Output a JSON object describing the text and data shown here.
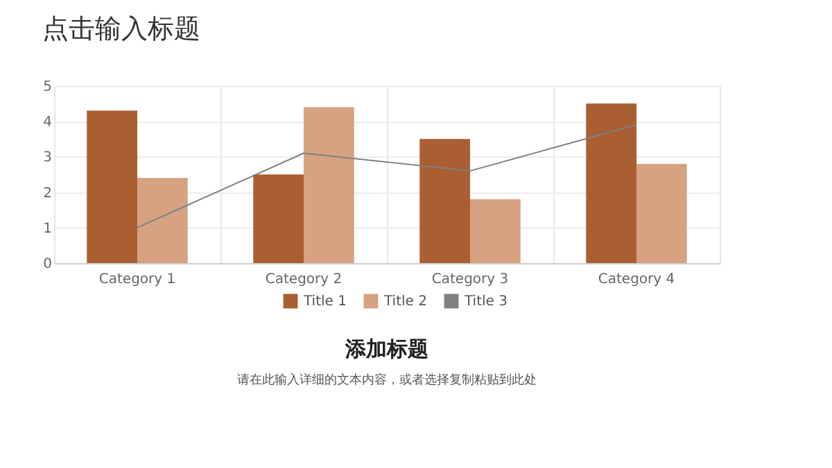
{
  "chart_data": {
    "type": "bar",
    "title": "点击输入标题",
    "categories": [
      "Category 1",
      "Category 2",
      "Category 3",
      "Category 4"
    ],
    "series": [
      {
        "name": "Title 1",
        "color": "#a95f32",
        "values": [
          4.3,
          2.5,
          3.5,
          4.5
        ]
      },
      {
        "name": "Title 2",
        "color": "#d6a282",
        "values": [
          2.4,
          4.4,
          1.8,
          2.8
        ]
      },
      {
        "name": "Title 3",
        "color": "#808080",
        "type": "line",
        "values": [
          1.0,
          3.1,
          2.6,
          3.9
        ]
      }
    ],
    "ylim": [
      0,
      5
    ],
    "yticks": [
      0,
      1,
      2,
      3,
      4,
      5
    ],
    "grid": true,
    "legend": "bottom",
    "annotations": [
      "添加标题",
      "请在此输入详细的文本内容，或者选择复制粘贴到此处"
    ]
  }
}
